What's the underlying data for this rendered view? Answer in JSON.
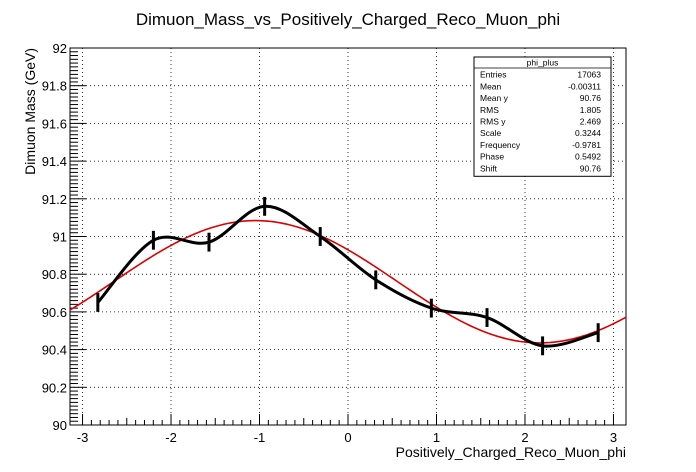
{
  "chart_data": {
    "type": "line",
    "title": "Dimuon_Mass_vs_Positively_Charged_Reco_Muon_phi",
    "xlabel": "Positively_Charged_Reco_Muon_phi",
    "ylabel": "Dimuon Mass (GeV)",
    "xlim": [
      -3.1416,
      3.1416
    ],
    "ylim": [
      90,
      92
    ],
    "x_ticks": [
      -3,
      -2,
      -1,
      0,
      1,
      2,
      3
    ],
    "y_ticks": [
      90,
      90.2,
      90.4,
      90.6,
      90.8,
      91,
      91.2,
      91.4,
      91.6,
      91.8,
      92
    ],
    "grid": true,
    "series": [
      {
        "color": "#000000",
        "style": "smooth-curve-with-error-bars",
        "x": [
          -2.827,
          -2.199,
          -1.571,
          -0.942,
          -0.314,
          0.314,
          0.942,
          1.571,
          2.199,
          2.827
        ],
        "y": [
          90.65,
          90.98,
          90.97,
          91.16,
          91.0,
          90.77,
          90.62,
          90.57,
          90.42,
          90.49
        ],
        "yerr": [
          0.05,
          0.05,
          0.05,
          0.05,
          0.05,
          0.05,
          0.05,
          0.05,
          0.05,
          0.05
        ]
      },
      {
        "color": "#dd0000",
        "style": "fit",
        "function": "Shift + Scale*sin(Frequency*x + Phase)",
        "params": {
          "Scale": 0.3244,
          "Frequency": -0.9781,
          "Phase": 0.5492,
          "Shift": 90.76
        }
      }
    ],
    "stats_box": {
      "title": "phi_plus",
      "placement": "top-right",
      "rows": [
        {
          "label": "Entries",
          "value": "17063"
        },
        {
          "label": "Mean",
          "value": "-0.00311"
        },
        {
          "label": "Mean y",
          "value": "90.76"
        },
        {
          "label": "RMS",
          "value": "1.805"
        },
        {
          "label": "RMS y",
          "value": "2.469"
        },
        {
          "label": "Scale",
          "value": "0.3244"
        },
        {
          "label": "Frequency",
          "value": "-0.9781"
        },
        {
          "label": "Phase",
          "value": "0.5492"
        },
        {
          "label": "Shift",
          "value": "90.76"
        }
      ]
    }
  }
}
